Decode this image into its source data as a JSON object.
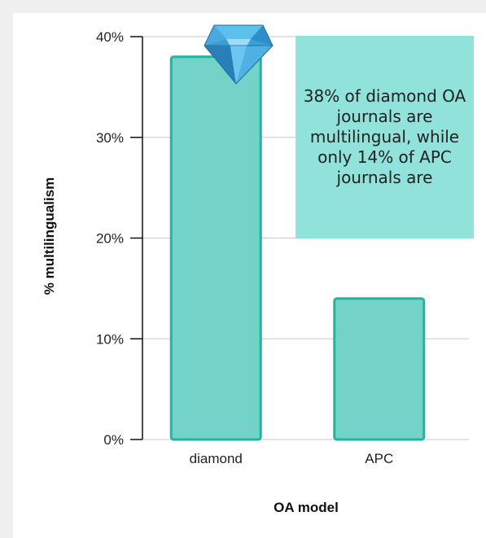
{
  "colors": {
    "bar_fill": "#74d3c8",
    "bar_stroke": "#21b3a3",
    "annotation_bg": "#90e2da",
    "background": "#f0f0f0"
  },
  "chart_data": {
    "type": "bar",
    "categories": [
      "diamond",
      "APC"
    ],
    "values": [
      38,
      14
    ],
    "xlabel": "OA model",
    "ylabel": "% multilingualism",
    "ylim": [
      0,
      40
    ],
    "yticks": [
      0,
      10,
      20,
      30,
      40
    ],
    "ytick_suffix": "%",
    "grid": true,
    "annotation": {
      "text": "38% of diamond OA journals are multilingual, while only 14% of APC journals are",
      "icon": "diamond-icon"
    }
  }
}
